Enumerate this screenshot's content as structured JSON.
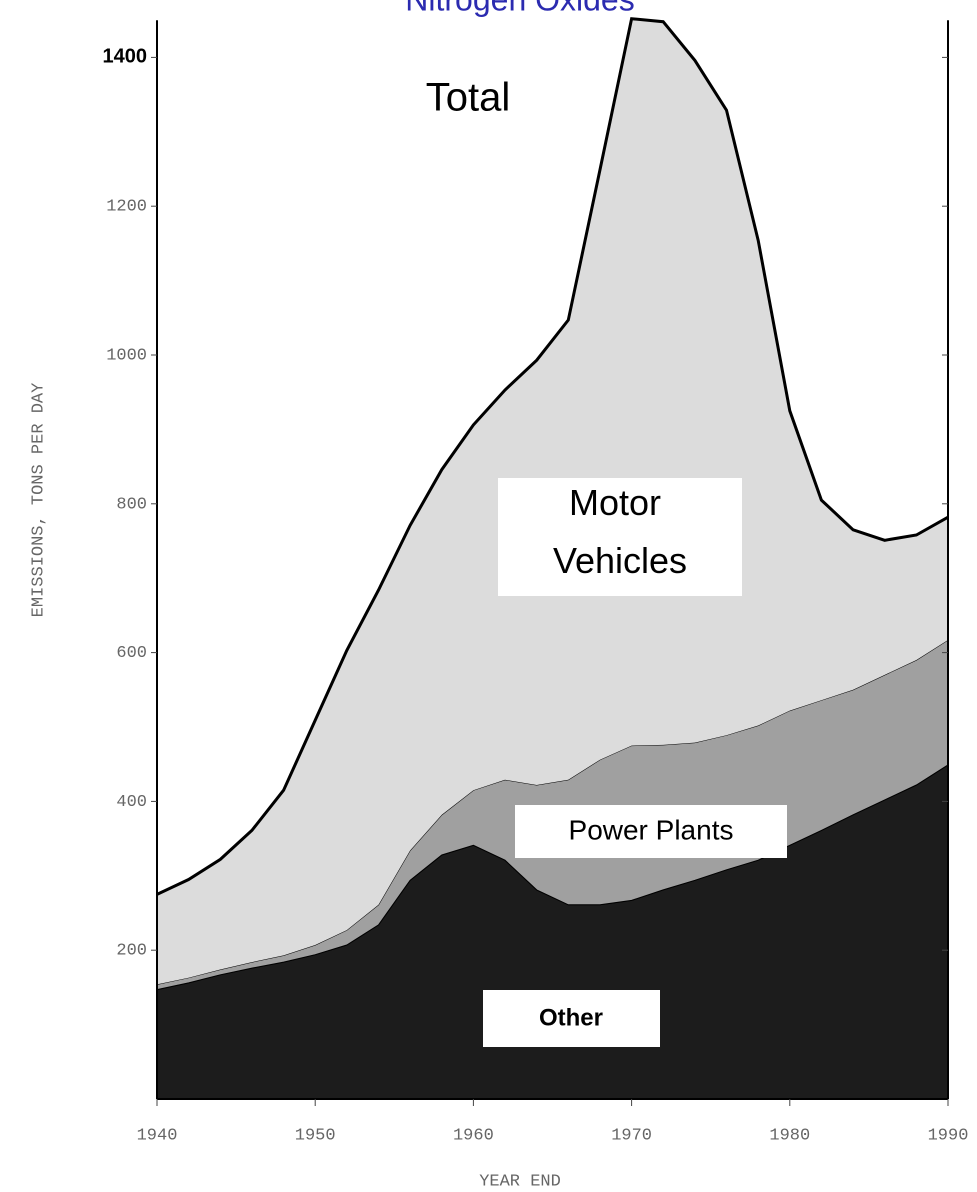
{
  "chart_data": {
    "type": "stacked_area",
    "title": "Nitrogen Oxides",
    "xlabel": "YEAR END",
    "ylabel": "EMISSIONS, TONS PER DAY",
    "annotations": [
      "Total"
    ],
    "x": [
      1940,
      1942,
      1944,
      1946,
      1948,
      1950,
      1952,
      1954,
      1956,
      1958,
      1960,
      1962,
      1964,
      1966,
      1968,
      1970,
      1972,
      1974,
      1976,
      1978,
      1980,
      1982,
      1984,
      1986,
      1988,
      1990
    ],
    "series": [
      {
        "name": "Other",
        "color": "#1c1c1c",
        "values": [
          147,
          156,
          167,
          176,
          184,
          194,
          207,
          234,
          294,
          328,
          341,
          321,
          281,
          261,
          261,
          267,
          281,
          294,
          308,
          321,
          341,
          361,
          382,
          402,
          422,
          449
        ]
      },
      {
        "name": "Power Plants",
        "color": "#a0a0a0",
        "values": [
          7,
          7,
          7,
          8,
          9,
          13,
          20,
          27,
          40,
          54,
          74,
          108,
          141,
          168,
          195,
          208,
          195,
          185,
          181,
          181,
          181,
          175,
          168,
          168,
          168,
          168
        ]
      },
      {
        "name": "Motor Vehicles",
        "color": "#dcdcdc",
        "values": [
          121,
          132,
          148,
          177,
          222,
          302,
          376,
          423,
          437,
          464,
          491,
          524,
          571,
          618,
          793,
          977,
          972,
          917,
          840,
          652,
          403,
          269,
          215,
          181,
          168,
          165
        ]
      }
    ],
    "xlim": [
      1940,
      1990
    ],
    "xticks": [
      1940,
      1950,
      1960,
      1970,
      1980,
      1990
    ],
    "ylim": [
      0,
      1450
    ],
    "yticks": [
      200,
      400,
      600,
      800,
      1000,
      1200,
      1400
    ]
  }
}
